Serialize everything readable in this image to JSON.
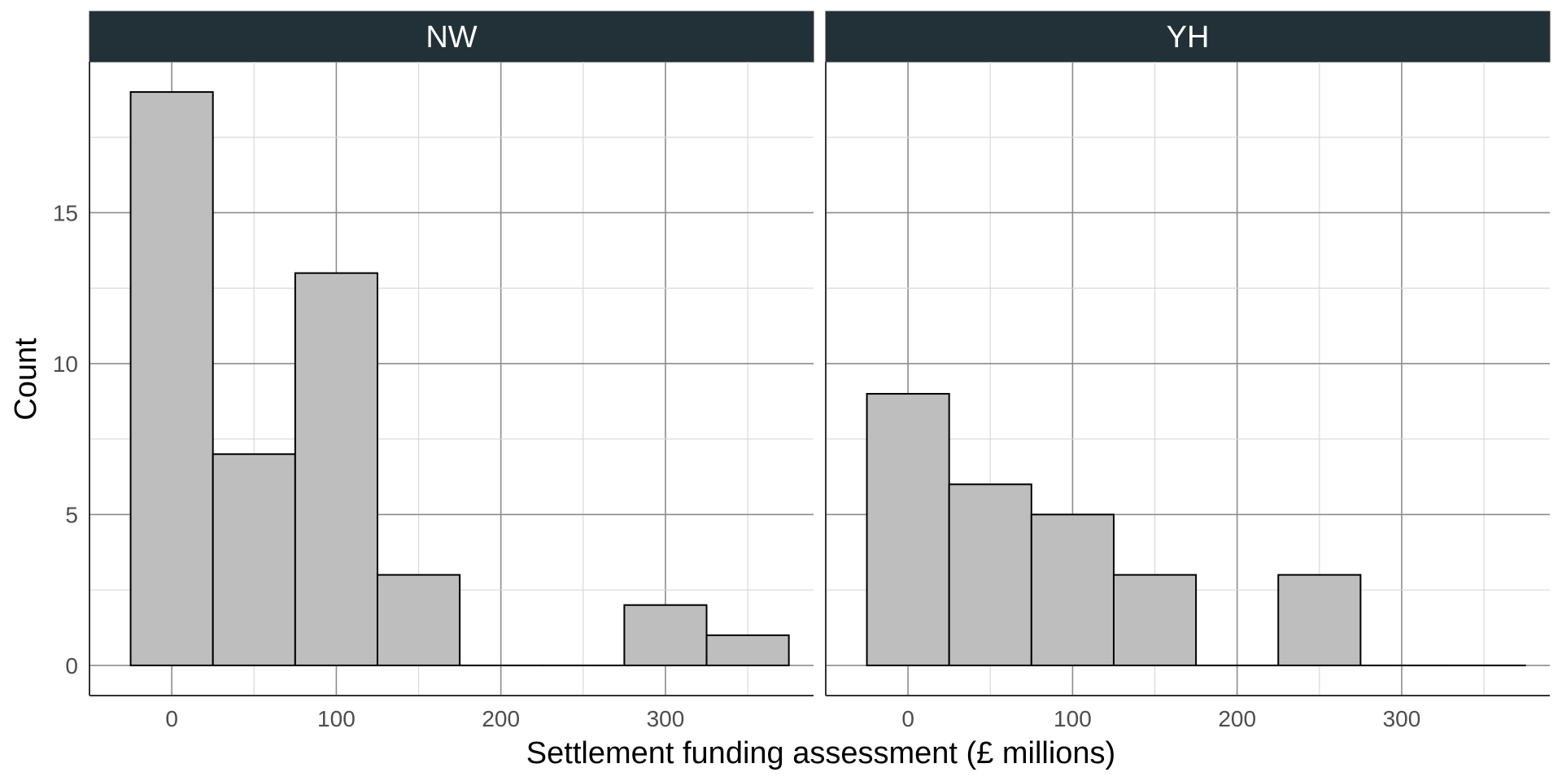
{
  "chart_data": {
    "type": "bar",
    "subtype": "faceted-histogram",
    "xlabel": "Settlement funding assessment (£ millions)",
    "ylabel": "Count",
    "bin_width": 50,
    "xlim": [
      -50,
      390
    ],
    "ylim": [
      -1,
      20
    ],
    "x_ticks": [
      0,
      100,
      200,
      300
    ],
    "y_ticks": [
      0,
      5,
      10,
      15
    ],
    "grid": true,
    "bar_fill": "#bebebe",
    "bar_outline": "#000000",
    "strip_fill": "#223037",
    "strip_text_color": "#ffffff",
    "facets": [
      {
        "name": "NW",
        "bin_centers": [
          0,
          50,
          100,
          150,
          200,
          250,
          300,
          350
        ],
        "values": [
          19,
          7,
          13,
          3,
          0,
          0,
          2,
          1
        ]
      },
      {
        "name": "YH",
        "bin_centers": [
          0,
          50,
          100,
          150,
          200,
          250,
          300,
          350
        ],
        "values": [
          9,
          6,
          5,
          3,
          0,
          3,
          0,
          0
        ]
      }
    ]
  }
}
